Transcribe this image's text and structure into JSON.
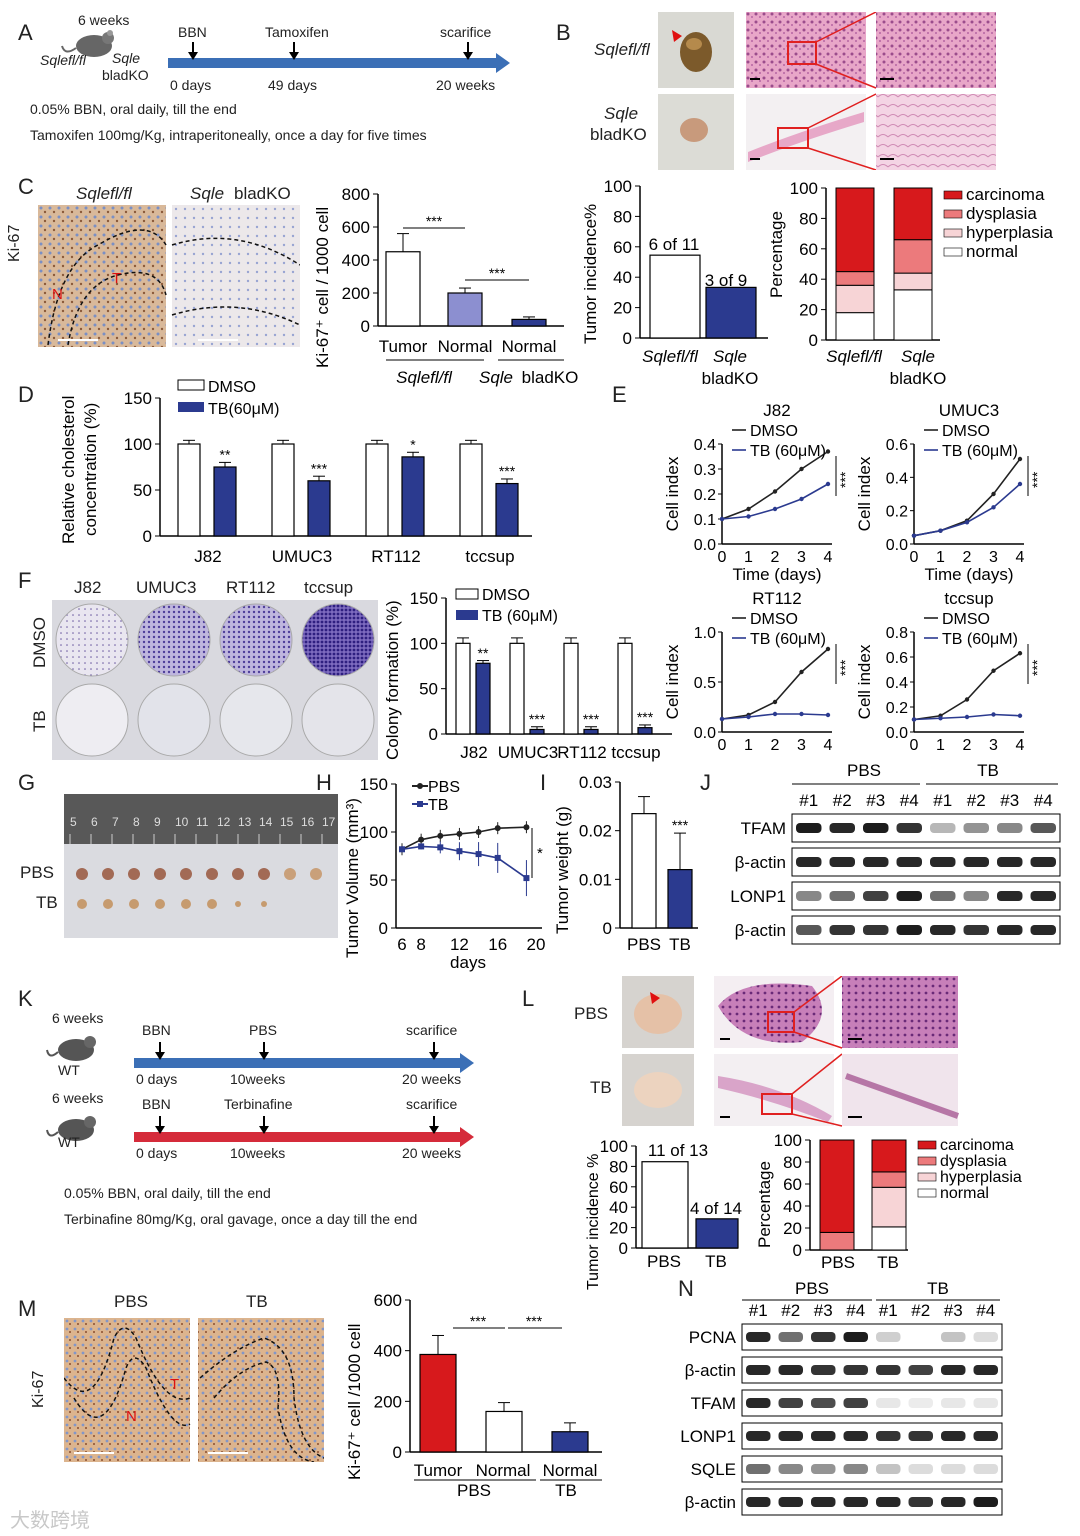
{
  "panels": {
    "A": {
      "letter": "A",
      "age": "6 weeks",
      "geno1": "Sqlefl/fl",
      "geno2": "Sqle",
      "geno3": "bladKO",
      "ev1": "BBN",
      "ev2": "Tamoxifen",
      "ev3": "scarifice",
      "t1": "0 days",
      "t2": "49 days",
      "t3": "20 weeks",
      "note1": "0.05% BBN, oral daily, till the end",
      "note2": "Tamoxifen 100mg/Kg, intraperitoneally, once a day for five times"
    },
    "B": {
      "letter": "B",
      "row1": "Sqlefl/fl",
      "row2a": "Sqle",
      "row2b": "bladKO"
    },
    "C": {
      "letter": "C",
      "stain": "Ki-67",
      "img1": "Sqlefl/fl",
      "img2a": "Sqle",
      "img2b": "bladKO",
      "ylabel": "Ki-67⁺ cell / 1000 cell",
      "ticks": [
        "0",
        "200",
        "400",
        "600",
        "800"
      ],
      "xcats": [
        "Tumor",
        "Normal",
        "Normal"
      ],
      "grp1": "Sqlefl/fl",
      "grp2a": "Sqle",
      "grp2b": "bladKO",
      "sig1": "***",
      "sig2": "***",
      "lab_T": "T",
      "lab_N": "N"
    },
    "C_inc": {
      "ylabel": "Tumor incidence%",
      "ticks": [
        "0",
        "20",
        "40",
        "60",
        "80",
        "100"
      ],
      "l1": "6 of 11",
      "l2": "3 of 9",
      "x1": "Sqlefl/fl",
      "x2a": "Sqle",
      "x2b": "bladKO"
    },
    "C_pct": {
      "ylabel": "Percentage",
      "ticks": [
        "0",
        "20",
        "40",
        "60",
        "80",
        "100"
      ],
      "x1": "Sqlefl/fl",
      "x2a": "Sqle",
      "x2b": "bladKO",
      "legend": [
        "carcinoma",
        "dysplasia",
        "hyperplasia",
        "normal"
      ]
    },
    "D": {
      "letter": "D",
      "ylabel1": "Relative cholesterol",
      "ylabel2": "concentration (%)",
      "ticks": [
        "0",
        "50",
        "100",
        "150"
      ],
      "cats": [
        "J82",
        "UMUC3",
        "RT112",
        "tccsup"
      ],
      "leg1": "DMSO",
      "leg2": "TB(60μM)",
      "sig": [
        "**",
        "***",
        "*",
        "***"
      ]
    },
    "E": {
      "letter": "E",
      "titles": [
        "J82",
        "UMUC3",
        "RT112",
        "tccsup"
      ],
      "ylabel": "Cell index",
      "xlabel": "Time (days)",
      "leg1": "DMSO",
      "leg2": "TB (60μM)",
      "sig": "***",
      "xticks": [
        "0",
        "1",
        "2",
        "3",
        "4"
      ]
    },
    "F": {
      "letter": "F",
      "cols": [
        "J82",
        "UMUC3",
        "RT112",
        "tccsup"
      ],
      "rows": [
        "DMSO",
        "TB"
      ],
      "ylabel": "Colony formation (%)",
      "ticks": [
        "0",
        "50",
        "100",
        "150"
      ],
      "leg1": "DMSO",
      "leg2": "TB (60μM)",
      "sig": [
        "**",
        "***",
        "***",
        "***"
      ]
    },
    "G": {
      "letter": "G",
      "row1": "PBS",
      "row2": "TB",
      "ruler": [
        "5",
        "6",
        "7",
        "8",
        "9",
        "10",
        "11",
        "12",
        "13",
        "14",
        "15",
        "16",
        "17"
      ]
    },
    "H": {
      "letter": "H",
      "ylabel": "Tumor Volume (mm³)",
      "xlabel": "days",
      "yticks": [
        "0",
        "50",
        "100",
        "150"
      ],
      "xticks": [
        "6",
        "8",
        "12",
        "16",
        "20"
      ],
      "leg1": "PBS",
      "leg2": "TB",
      "sig": "*"
    },
    "I": {
      "letter": "I",
      "ylabel": "Tumor weight (g)",
      "ticks": [
        "0",
        "0.01",
        "0.02",
        "0.03"
      ],
      "x1": "PBS",
      "x2": "TB",
      "sig": "***"
    },
    "J": {
      "letter": "J",
      "g1": "PBS",
      "g2": "TB",
      "lanes": [
        "#1",
        "#2",
        "#3",
        "#4",
        "#1",
        "#2",
        "#3",
        "#4"
      ],
      "bands": [
        "TFAM",
        "β-actin",
        "LONP1",
        "β-actin"
      ]
    },
    "K": {
      "letter": "K",
      "age": "6 weeks",
      "wt": "WT",
      "r1ev": [
        "BBN",
        "PBS",
        "scarifice"
      ],
      "r1t": [
        "0 days",
        "10weeks",
        "20 weeks"
      ],
      "r2ev": [
        "BBN",
        "Terbinafine",
        "scarifice"
      ],
      "r2t": [
        "0 days",
        "10weeks",
        "20 weeks"
      ],
      "note1": "0.05% BBN, oral daily, till the end",
      "note2": "Terbinafine 80mg/Kg, oral gavage, once a day till the end"
    },
    "L": {
      "letter": "L",
      "row1": "PBS",
      "row2": "TB",
      "inc_ylabel": "Tumor incidence %",
      "inc_ticks": [
        "0",
        "20",
        "40",
        "60",
        "80",
        "100"
      ],
      "l1": "11 of 13",
      "l2": "4 of 14",
      "x1": "PBS",
      "x2": "TB",
      "pct_ylabel": "Percentage",
      "legend": [
        "carcinoma",
        "dysplasia",
        "hyperplasia",
        "normal"
      ]
    },
    "M": {
      "letter": "M",
      "stain": "Ki-67",
      "img1": "PBS",
      "img2": "TB",
      "ylabel": "Ki-67⁺ cell /1000 cell",
      "ticks": [
        "0",
        "200",
        "400",
        "600"
      ],
      "xcats": [
        "Tumor",
        "Normal",
        "Normal"
      ],
      "grp1": "PBS",
      "grp2": "TB",
      "sig1": "***",
      "sig2": "***",
      "lab_T": "T",
      "lab_N": "N"
    },
    "N": {
      "letter": "N",
      "g1": "PBS",
      "g2": "TB",
      "lanes": [
        "#1",
        "#2",
        "#3",
        "#4",
        "#1",
        "#2",
        "#3",
        "#4"
      ],
      "bands": [
        "PCNA",
        "β-actin",
        "TFAM",
        "LONP1",
        "SQLE",
        "β-actin"
      ]
    }
  },
  "watermark": "大数跨境",
  "colors": {
    "navy": "#2b3a8f",
    "red": "#d7191c",
    "lav": "#8c8fd0",
    "pink": "#ec7a7c",
    "lpink": "#f7d4d6"
  },
  "chart_data": [
    {
      "type": "bar",
      "title": "C Ki-67",
      "categories": [
        "Tumor Sqlefl/fl",
        "Normal Sqlefl/fl",
        "Normal Sqle bladKO"
      ],
      "values": [
        450,
        200,
        40
      ],
      "ylim": [
        0,
        800
      ],
      "ylabel": "Ki-67+ cell / 1000 cell"
    },
    {
      "type": "bar",
      "title": "C Tumor incidence",
      "categories": [
        "Sqlefl/fl",
        "Sqle bladKO"
      ],
      "values": [
        54.5,
        33.3
      ],
      "ylim": [
        0,
        100
      ]
    },
    {
      "type": "bar",
      "title": "C Percentage stacked",
      "categories": [
        "Sqlefl/fl",
        "Sqle bladKO"
      ],
      "series": [
        {
          "name": "normal",
          "values": [
            18,
            33
          ]
        },
        {
          "name": "hyperplasia",
          "values": [
            18,
            11
          ]
        },
        {
          "name": "dysplasia",
          "values": [
            9,
            22
          ]
        },
        {
          "name": "carcinoma",
          "values": [
            55,
            34
          ]
        }
      ],
      "ylim": [
        0,
        100
      ]
    },
    {
      "type": "bar",
      "title": "D cholesterol",
      "categories": [
        "J82",
        "UMUC3",
        "RT112",
        "tccsup"
      ],
      "series": [
        {
          "name": "DMSO",
          "values": [
            100,
            100,
            100,
            100
          ]
        },
        {
          "name": "TB(60μM)",
          "values": [
            75,
            60,
            86,
            57
          ]
        }
      ],
      "ylim": [
        0,
        150
      ]
    },
    {
      "type": "line",
      "title": "E J82",
      "x": [
        0,
        1,
        2,
        3,
        4
      ],
      "series": [
        {
          "name": "DMSO",
          "values": [
            0.1,
            0.14,
            0.21,
            0.3,
            0.37
          ]
        },
        {
          "name": "TB (60μM)",
          "values": [
            0.1,
            0.11,
            0.14,
            0.18,
            0.24
          ]
        }
      ],
      "ylim": [
        0,
        0.4
      ]
    },
    {
      "type": "line",
      "title": "E UMUC3",
      "x": [
        0,
        1,
        2,
        3,
        4
      ],
      "series": [
        {
          "name": "DMSO",
          "values": [
            0.05,
            0.08,
            0.14,
            0.3,
            0.51
          ]
        },
        {
          "name": "TB (60μM)",
          "values": [
            0.05,
            0.08,
            0.13,
            0.22,
            0.36
          ]
        }
      ],
      "ylim": [
        0,
        0.6
      ]
    },
    {
      "type": "line",
      "title": "E RT112",
      "x": [
        0,
        1,
        2,
        3,
        4
      ],
      "series": [
        {
          "name": "DMSO",
          "values": [
            0.13,
            0.17,
            0.3,
            0.6,
            0.83
          ]
        },
        {
          "name": "TB (60μM)",
          "values": [
            0.13,
            0.15,
            0.18,
            0.18,
            0.17
          ]
        }
      ],
      "ylim": [
        0,
        1.0
      ]
    },
    {
      "type": "line",
      "title": "E tccsup",
      "x": [
        0,
        1,
        2,
        3,
        4
      ],
      "series": [
        {
          "name": "DMSO",
          "values": [
            0.1,
            0.13,
            0.26,
            0.49,
            0.63
          ]
        },
        {
          "name": "TB (60μM)",
          "values": [
            0.1,
            0.11,
            0.12,
            0.14,
            0.13
          ]
        }
      ],
      "ylim": [
        0,
        0.8
      ]
    },
    {
      "type": "bar",
      "title": "F colony",
      "categories": [
        "J82",
        "UMUC3",
        "RT112",
        "tccsup"
      ],
      "series": [
        {
          "name": "DMSO",
          "values": [
            100,
            100,
            100,
            100
          ]
        },
        {
          "name": "TB (60μM)",
          "values": [
            78,
            5,
            5,
            7
          ]
        }
      ],
      "ylim": [
        0,
        150
      ]
    },
    {
      "type": "line",
      "title": "H tumor volume",
      "x": [
        6,
        8,
        10,
        12,
        14,
        16,
        19
      ],
      "series": [
        {
          "name": "PBS",
          "values": [
            82,
            92,
            96,
            98,
            100,
            104,
            105
          ]
        },
        {
          "name": "TB",
          "values": [
            82,
            85,
            84,
            80,
            77,
            73,
            52
          ]
        }
      ],
      "ylim": [
        0,
        150
      ]
    },
    {
      "type": "bar",
      "title": "I tumor weight",
      "categories": [
        "PBS",
        "TB"
      ],
      "values": [
        0.0235,
        0.012
      ],
      "ylim": [
        0,
        0.03
      ]
    },
    {
      "type": "bar",
      "title": "L Tumor incidence",
      "categories": [
        "PBS",
        "TB"
      ],
      "values": [
        84.6,
        28.6
      ],
      "ylim": [
        0,
        100
      ]
    },
    {
      "type": "bar",
      "title": "L Percentage stacked",
      "categories": [
        "PBS",
        "TB"
      ],
      "series": [
        {
          "name": "normal",
          "values": [
            0,
            21
          ]
        },
        {
          "name": "hyperplasia",
          "values": [
            0,
            36
          ]
        },
        {
          "name": "dysplasia",
          "values": [
            16,
            14
          ]
        },
        {
          "name": "carcinoma",
          "values": [
            84,
            29
          ]
        }
      ],
      "ylim": [
        0,
        100
      ]
    },
    {
      "type": "bar",
      "title": "M Ki-67",
      "categories": [
        "Tumor PBS",
        "Normal PBS",
        "Normal TB"
      ],
      "values": [
        385,
        160,
        80
      ],
      "ylim": [
        0,
        600
      ]
    }
  ]
}
